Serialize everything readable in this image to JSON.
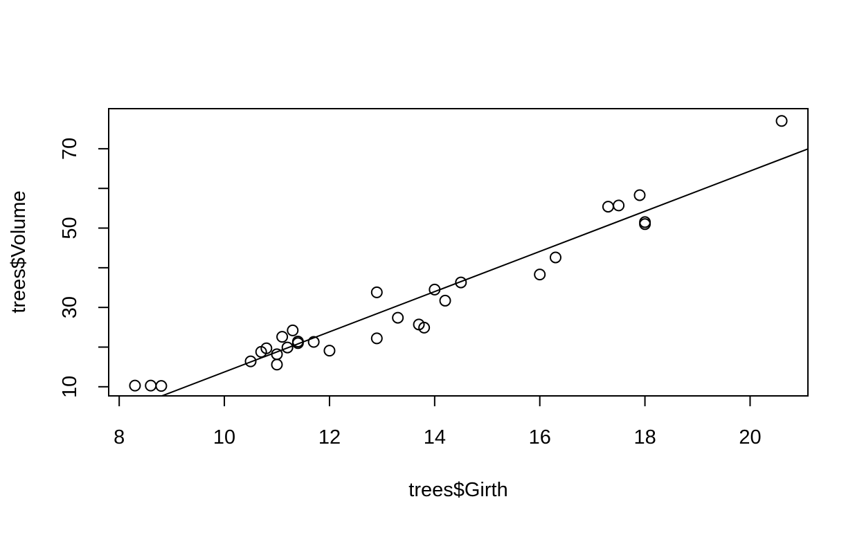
{
  "chart_data": {
    "type": "scatter",
    "title": "",
    "xlabel": "trees$Girth",
    "ylabel": "trees$Volume",
    "xlim": [
      7.8,
      21.1
    ],
    "ylim": [
      7.7,
      80.1
    ],
    "x_ticks": [
      8,
      10,
      12,
      14,
      16,
      18,
      20
    ],
    "y_ticks": [
      10,
      20,
      30,
      40,
      50,
      60,
      70
    ],
    "y_tick_labels": [
      "10",
      "",
      "30",
      "",
      "50",
      "",
      "70"
    ],
    "grid": false,
    "legend": "none",
    "marker": "open-circle",
    "points": [
      {
        "x": 8.3,
        "y": 10.3
      },
      {
        "x": 8.6,
        "y": 10.3
      },
      {
        "x": 8.8,
        "y": 10.2
      },
      {
        "x": 10.5,
        "y": 16.4
      },
      {
        "x": 10.7,
        "y": 18.8
      },
      {
        "x": 10.8,
        "y": 19.7
      },
      {
        "x": 11.0,
        "y": 15.6
      },
      {
        "x": 11.0,
        "y": 18.2
      },
      {
        "x": 11.1,
        "y": 22.6
      },
      {
        "x": 11.2,
        "y": 19.9
      },
      {
        "x": 11.3,
        "y": 24.2
      },
      {
        "x": 11.4,
        "y": 21.0
      },
      {
        "x": 11.4,
        "y": 21.4
      },
      {
        "x": 11.7,
        "y": 21.3
      },
      {
        "x": 12.0,
        "y": 19.1
      },
      {
        "x": 12.9,
        "y": 22.2
      },
      {
        "x": 12.9,
        "y": 33.8
      },
      {
        "x": 13.3,
        "y": 27.4
      },
      {
        "x": 13.7,
        "y": 25.7
      },
      {
        "x": 13.8,
        "y": 24.9
      },
      {
        "x": 14.0,
        "y": 34.5
      },
      {
        "x": 14.2,
        "y": 31.7
      },
      {
        "x": 14.5,
        "y": 36.3
      },
      {
        "x": 16.0,
        "y": 38.3
      },
      {
        "x": 16.3,
        "y": 42.6
      },
      {
        "x": 17.3,
        "y": 55.4
      },
      {
        "x": 17.5,
        "y": 55.7
      },
      {
        "x": 17.9,
        "y": 58.3
      },
      {
        "x": 18.0,
        "y": 51.5
      },
      {
        "x": 18.0,
        "y": 51.0
      },
      {
        "x": 20.6,
        "y": 77.0
      }
    ],
    "fit_line": {
      "intercept": -36.9435,
      "slope": 5.0659
    }
  }
}
